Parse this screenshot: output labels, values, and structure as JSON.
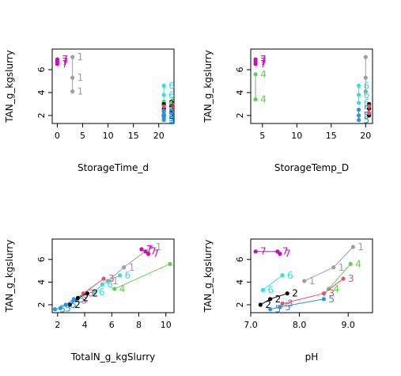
{
  "colors": {
    "1": "#9e9e9e",
    "2": "#000000",
    "3": "#df536b",
    "4": "#61d04f",
    "5": "#2297e6",
    "6": "#28e2e5",
    "7": "#cd0bbc"
  },
  "chart_data": [
    {
      "type": "scatter",
      "xlabel": "StorageTime_d",
      "ylabel": "TAN_g_kgslurry",
      "xlim": [
        -1,
        23
      ],
      "ylim": [
        1.3,
        7.8
      ],
      "xticks": [
        "0",
        "5",
        "10",
        "15",
        "20"
      ],
      "yticks": [
        "2",
        "4",
        "6"
      ],
      "series": [
        {
          "label": "1",
          "points": [
            [
              3,
              7.1
            ],
            [
              3,
              5.3
            ],
            [
              3,
              4.1
            ]
          ]
        },
        {
          "label": "7",
          "points": [
            [
              0,
              6.5
            ],
            [
              0,
              6.7
            ],
            [
              0,
              6.9
            ]
          ]
        },
        {
          "label": "6",
          "points": [
            [
              21,
              3.1
            ],
            [
              21,
              3.8
            ],
            [
              21,
              4.6
            ]
          ]
        },
        {
          "label": "4",
          "points": [
            [
              21,
              2.3
            ],
            [
              21,
              2.9
            ],
            [
              21,
              3.2
            ]
          ]
        },
        {
          "label": "2",
          "points": [
            [
              21,
              2.0
            ],
            [
              21,
              2.6
            ],
            [
              21,
              3.0
            ]
          ]
        },
        {
          "label": "3",
          "points": [
            [
              21,
              2.1
            ],
            [
              21,
              2.4
            ],
            [
              21,
              2.8
            ]
          ]
        },
        {
          "label": "5",
          "points": [
            [
              21,
              1.6
            ],
            [
              21,
              1.8
            ],
            [
              21,
              2.1
            ],
            [
              21,
              2.4
            ]
          ]
        }
      ]
    },
    {
      "type": "scatter",
      "xlabel": "StorageTemp_D",
      "ylabel": "TAN_g_kgslurry",
      "xlim": [
        3.3,
        21
      ],
      "ylim": [
        1.3,
        7.8
      ],
      "xticks": [
        "5",
        "10",
        "15",
        "20"
      ],
      "yticks": [
        "2",
        "4",
        "6"
      ],
      "series": [
        {
          "label": "7",
          "points": [
            [
              4,
              6.5
            ],
            [
              4,
              6.7
            ],
            [
              4,
              6.9
            ]
          ]
        },
        {
          "label": "4",
          "points": [
            [
              4,
              5.6
            ],
            [
              4,
              3.4
            ]
          ]
        },
        {
          "label": "1",
          "points": [
            [
              20,
              7.1
            ],
            [
              20,
              5.3
            ],
            [
              20,
              4.1
            ]
          ]
        },
        {
          "label": "6",
          "points": [
            [
              19,
              3.1
            ],
            [
              19,
              3.8
            ],
            [
              19,
              4.6
            ]
          ]
        },
        {
          "label": "5",
          "points": [
            [
              19,
              1.6
            ],
            [
              19,
              2.0
            ],
            [
              19,
              2.5
            ]
          ]
        },
        {
          "label": "2",
          "points": [
            [
              20.5,
              2.0
            ],
            [
              20.5,
              2.6
            ],
            [
              20.5,
              3.0
            ]
          ]
        },
        {
          "label": "3",
          "points": [
            [
              20.5,
              2.2
            ],
            [
              20.5,
              2.8
            ]
          ]
        }
      ]
    },
    {
      "type": "scatter",
      "xlabel": "TotalN_g_kgSlurry",
      "ylabel": "TAN_g_kgslurry",
      "xlim": [
        1.6,
        10.6
      ],
      "ylim": [
        1.3,
        7.8
      ],
      "xticks": [
        "2",
        "4",
        "6",
        "8",
        "10"
      ],
      "yticks": [
        "2",
        "4",
        "6"
      ],
      "series": [
        {
          "label": "1",
          "points": [
            [
              8.9,
              7.1
            ],
            [
              6.9,
              5.3
            ],
            [
              5.7,
              4.1
            ]
          ]
        },
        {
          "label": "7",
          "points": [
            [
              8.2,
              6.9
            ],
            [
              8.5,
              6.7
            ],
            [
              8.7,
              6.5
            ]
          ]
        },
        {
          "label": "4",
          "points": [
            [
              10.3,
              5.6
            ],
            [
              6.2,
              3.4
            ]
          ]
        },
        {
          "label": "6",
          "points": [
            [
              6.6,
              4.6
            ],
            [
              5.3,
              3.8
            ],
            [
              4.7,
              3.1
            ]
          ]
        },
        {
          "label": "3",
          "points": [
            [
              5.4,
              4.3
            ],
            [
              3.9,
              3.0
            ],
            [
              3.4,
              2.4
            ]
          ]
        },
        {
          "label": "2",
          "points": [
            [
              4.2,
              3.0
            ],
            [
              3.5,
              2.6
            ],
            [
              2.9,
              2.0
            ]
          ]
        },
        {
          "label": "5",
          "points": [
            [
              3.2,
              2.5
            ],
            [
              2.6,
              2.0
            ],
            [
              2.2,
              1.7
            ],
            [
              1.8,
              1.6
            ]
          ]
        }
      ]
    },
    {
      "type": "scatter",
      "xlabel": "pH",
      "ylabel": "TAN_g_kgslurry",
      "xlim": [
        7.0,
        9.5
      ],
      "ylim": [
        1.3,
        7.8
      ],
      "xticks": [
        "7.0",
        "8.0",
        "9.0"
      ],
      "yticks": [
        "2",
        "4",
        "6"
      ],
      "series": [
        {
          "label": "1",
          "points": [
            [
              9.1,
              7.1
            ],
            [
              8.7,
              5.3
            ],
            [
              8.1,
              4.1
            ]
          ]
        },
        {
          "label": "7",
          "points": [
            [
              7.1,
              6.7
            ],
            [
              7.55,
              6.7
            ],
            [
              7.6,
              6.5
            ]
          ]
        },
        {
          "label": "4",
          "points": [
            [
              9.05,
              5.6
            ],
            [
              8.6,
              3.4
            ]
          ]
        },
        {
          "label": "6",
          "points": [
            [
              7.65,
              4.6
            ],
            [
              7.25,
              3.3
            ]
          ]
        },
        {
          "label": "3",
          "points": [
            [
              8.9,
              4.3
            ],
            [
              8.5,
              3.0
            ],
            [
              7.65,
              2.1
            ]
          ]
        },
        {
          "label": "2",
          "points": [
            [
              7.75,
              3.0
            ],
            [
              7.4,
              2.5
            ],
            [
              7.2,
              2.0
            ]
          ]
        },
        {
          "label": "5",
          "points": [
            [
              8.5,
              2.5
            ],
            [
              7.6,
              1.8
            ],
            [
              7.4,
              1.6
            ]
          ]
        }
      ]
    }
  ]
}
